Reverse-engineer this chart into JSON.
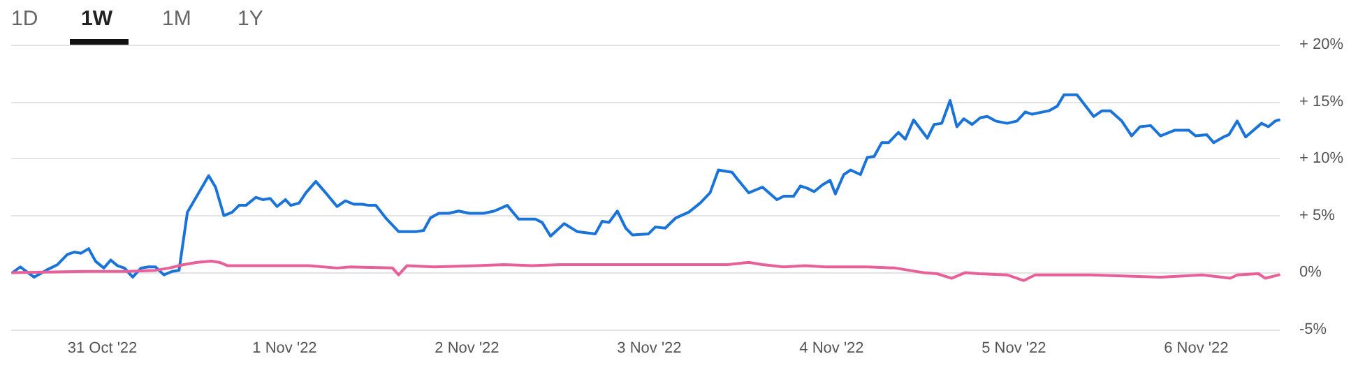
{
  "chart_data": {
    "type": "line",
    "annotations": [
      "1D",
      "1W",
      "1M",
      "1Y"
    ],
    "xlim": [
      "2022-10-30T12:00",
      "2022-11-06T11:00"
    ],
    "xticks": [
      {
        "value": "2022-10-31",
        "label": "31 Oct '22"
      },
      {
        "value": "2022-11-01",
        "label": "1 Nov '22"
      },
      {
        "value": "2022-11-02",
        "label": "2 Nov '22"
      },
      {
        "value": "2022-11-03",
        "label": "3 Nov '22"
      },
      {
        "value": "2022-11-04",
        "label": "4 Nov '22"
      },
      {
        "value": "2022-11-05",
        "label": "5 Nov '22"
      },
      {
        "value": "2022-11-06",
        "label": "6 Nov '22"
      }
    ],
    "ylim": [
      -5,
      20
    ],
    "yticks": [
      {
        "value": -5,
        "label": "-5%"
      },
      {
        "value": 0,
        "label": "0%"
      },
      {
        "value": 5,
        "label": "+ 5%"
      },
      {
        "value": 10,
        "label": "+ 10%"
      },
      {
        "value": 15,
        "label": "+ 15%"
      },
      {
        "value": 20,
        "label": "+ 20%"
      }
    ],
    "grid": "y",
    "marker": "none",
    "line_style": "solid",
    "series": [
      {
        "color": "#1a73d9",
        "x": [
          "2022-10-30T12:12",
          "2022-10-30T13:12",
          "2022-10-30T15:00",
          "2022-10-30T16:36",
          "2022-10-30T18:06",
          "2022-10-30T19:24",
          "2022-10-30T20:18",
          "2022-10-30T21:12",
          "2022-10-30T22:12",
          "2022-10-30T23:06",
          "2022-10-31T00:12",
          "2022-10-31T01:06",
          "2022-10-31T02:00",
          "2022-10-31T02:54",
          "2022-10-31T04:00",
          "2022-10-31T05:06",
          "2022-10-31T06:06",
          "2022-10-31T07:00",
          "2022-10-31T08:06",
          "2022-10-31T09:12",
          "2022-10-31T10:06",
          "2022-10-31T11:12",
          "2022-10-31T14:00",
          "2022-10-31T14:54",
          "2022-10-31T16:00",
          "2022-10-31T17:06",
          "2022-10-31T18:00",
          "2022-10-31T18:54",
          "2022-10-31T20:12",
          "2022-10-31T21:06",
          "2022-10-31T22:06",
          "2022-10-31T23:00",
          "2022-11-01T00:06",
          "2022-11-01T00:48",
          "2022-11-01T01:54",
          "2022-11-01T02:48",
          "2022-11-01T04:06",
          "2022-11-01T05:24",
          "2022-11-01T06:54",
          "2022-11-01T08:00",
          "2022-11-01T09:06",
          "2022-11-01T10:12",
          "2022-11-01T11:06",
          "2022-11-01T12:00",
          "2022-11-01T13:18",
          "2022-11-01T15:00",
          "2022-11-01T17:24",
          "2022-11-01T18:18",
          "2022-11-01T19:12",
          "2022-11-01T20:18",
          "2022-11-01T21:36",
          "2022-11-01T22:54",
          "2022-11-02T00:18",
          "2022-11-02T02:12",
          "2022-11-02T03:36",
          "2022-11-02T05:18",
          "2022-11-02T06:48",
          "2022-11-02T09:00",
          "2022-11-02T09:54",
          "2022-11-02T11:00",
          "2022-11-02T12:48",
          "2022-11-02T14:30",
          "2022-11-02T16:54",
          "2022-11-02T17:48",
          "2022-11-02T18:42",
          "2022-11-02T19:48",
          "2022-11-02T20:54",
          "2022-11-02T21:48",
          "2022-11-02T23:54",
          "2022-11-03T00:48",
          "2022-11-03T02:06",
          "2022-11-03T03:30",
          "2022-11-03T05:12",
          "2022-11-03T06:42",
          "2022-11-03T08:00",
          "2022-11-03T09:06",
          "2022-11-03T10:54",
          "2022-11-03T11:36",
          "2022-11-03T13:06",
          "2022-11-03T14:54",
          "2022-11-03T16:48",
          "2022-11-03T17:42",
          "2022-11-03T19:00",
          "2022-11-03T19:54",
          "2022-11-03T20:48",
          "2022-11-03T21:42",
          "2022-11-03T22:48",
          "2022-11-03T23:48",
          "2022-11-04T00:30",
          "2022-11-04T01:36",
          "2022-11-04T02:30",
          "2022-11-04T03:48",
          "2022-11-04T04:42",
          "2022-11-04T05:36",
          "2022-11-04T06:36",
          "2022-11-04T07:30",
          "2022-11-04T08:48",
          "2022-11-04T09:42",
          "2022-11-04T10:48",
          "2022-11-04T12:36",
          "2022-11-04T13:30",
          "2022-11-04T14:30",
          "2022-11-04T15:36",
          "2022-11-04T16:30",
          "2022-11-04T17:24",
          "2022-11-04T18:30",
          "2022-11-04T19:36",
          "2022-11-04T20:30",
          "2022-11-04T21:36",
          "2022-11-04T23:06",
          "2022-11-05T00:24",
          "2022-11-05T01:30",
          "2022-11-05T02:24",
          "2022-11-05T04:36",
          "2022-11-05T05:42",
          "2022-11-05T06:36",
          "2022-11-05T08:18",
          "2022-11-05T10:30",
          "2022-11-05T11:36",
          "2022-11-05T12:42",
          "2022-11-05T14:12",
          "2022-11-05T15:30",
          "2022-11-05T16:36",
          "2022-11-05T18:00",
          "2022-11-05T19:18",
          "2022-11-05T21:12",
          "2022-11-05T23:00",
          "2022-11-05T23:54",
          "2022-11-06T01:24",
          "2022-11-06T02:18",
          "2022-11-06T03:36",
          "2022-11-06T04:18",
          "2022-11-06T05:24",
          "2022-11-06T06:30",
          "2022-11-06T08:36",
          "2022-11-06T09:30",
          "2022-11-06T10:24",
          "2022-11-06T10:54"
        ],
        "values": [
          0.0,
          0.5,
          -0.4,
          0.2,
          0.7,
          1.6,
          1.8,
          1.7,
          2.1,
          1.0,
          0.4,
          1.1,
          0.6,
          0.4,
          -0.4,
          0.4,
          0.5,
          0.5,
          -0.2,
          0.1,
          0.2,
          5.3,
          8.5,
          7.5,
          5.0,
          5.3,
          5.9,
          5.9,
          6.6,
          6.4,
          6.5,
          5.8,
          6.4,
          5.9,
          6.1,
          7.0,
          8.0,
          7.0,
          5.8,
          6.3,
          6.0,
          6.0,
          5.9,
          5.9,
          4.8,
          3.6,
          3.6,
          3.7,
          4.8,
          5.2,
          5.2,
          5.4,
          5.2,
          5.2,
          5.4,
          5.9,
          4.7,
          4.7,
          4.4,
          3.2,
          4.3,
          3.6,
          3.4,
          4.5,
          4.4,
          5.4,
          3.9,
          3.3,
          3.4,
          4.0,
          3.9,
          4.8,
          5.3,
          6.1,
          7.0,
          9.0,
          8.8,
          8.2,
          7.0,
          7.5,
          6.4,
          6.7,
          6.7,
          7.6,
          7.4,
          7.1,
          7.7,
          8.1,
          6.9,
          8.6,
          9.0,
          8.6,
          10.1,
          10.2,
          11.4,
          11.4,
          12.3,
          11.7,
          13.4,
          11.8,
          13.0,
          13.1,
          15.1,
          12.8,
          13.5,
          13.0,
          13.6,
          13.7,
          13.3,
          13.1,
          13.3,
          14.1,
          13.9,
          14.2,
          14.6,
          15.6,
          15.6,
          13.7,
          14.2,
          14.2,
          13.3,
          12.0,
          12.8,
          12.9,
          12.0,
          12.5,
          12.5,
          12.0,
          12.1,
          11.4,
          11.9,
          12.1,
          13.3,
          11.9,
          13.1,
          12.8,
          13.3,
          13.4
        ]
      },
      {
        "color": "#e8609a",
        "x": [
          "2022-10-30T12:12",
          "2022-10-30T21:48",
          "2022-10-31T03:18",
          "2022-10-31T07:00",
          "2022-10-31T08:48",
          "2022-10-31T10:42",
          "2022-10-31T12:30",
          "2022-10-31T14:18",
          "2022-10-31T15:24",
          "2022-10-31T16:30",
          "2022-10-31T19:54",
          "2022-11-01T03:12",
          "2022-11-01T06:54",
          "2022-11-01T08:42",
          "2022-11-01T14:12",
          "2022-11-01T15:00",
          "2022-11-01T16:06",
          "2022-11-01T19:42",
          "2022-11-02T01:18",
          "2022-11-02T04:54",
          "2022-11-02T08:36",
          "2022-11-02T12:18",
          "2022-11-02T19:36",
          "2022-11-03T03:00",
          "2022-11-03T10:18",
          "2022-11-03T13:06",
          "2022-11-03T14:54",
          "2022-11-03T17:42",
          "2022-11-03T20:30",
          "2022-11-03T23:12",
          "2022-11-04T04:42",
          "2022-11-04T08:24",
          "2022-11-04T10:12",
          "2022-11-04T12:06",
          "2022-11-04T13:54",
          "2022-11-04T15:48",
          "2022-11-04T17:36",
          "2022-11-04T19:24",
          "2022-11-04T23:06",
          "2022-11-05T01:18",
          "2022-11-05T02:48",
          "2022-11-05T10:06",
          "2022-11-05T19:18",
          "2022-11-06T00:48",
          "2022-11-06T04:30",
          "2022-11-06T05:24",
          "2022-11-06T08:12",
          "2022-11-06T09:06",
          "2022-11-06T10:54"
        ],
        "values": [
          0,
          0.1,
          0.1,
          0.2,
          0.4,
          0.7,
          0.9,
          1.0,
          0.9,
          0.6,
          0.6,
          0.6,
          0.4,
          0.5,
          0.4,
          -0.2,
          0.6,
          0.5,
          0.6,
          0.7,
          0.6,
          0.7,
          0.7,
          0.7,
          0.7,
          0.9,
          0.7,
          0.5,
          0.6,
          0.5,
          0.5,
          0.4,
          0.2,
          0,
          -0.1,
          -0.5,
          0,
          -0.1,
          -0.2,
          -0.7,
          -0.2,
          -0.2,
          -0.4,
          -0.2,
          -0.5,
          -0.2,
          -0.1,
          -0.5,
          -0.2
        ]
      }
    ]
  }
}
